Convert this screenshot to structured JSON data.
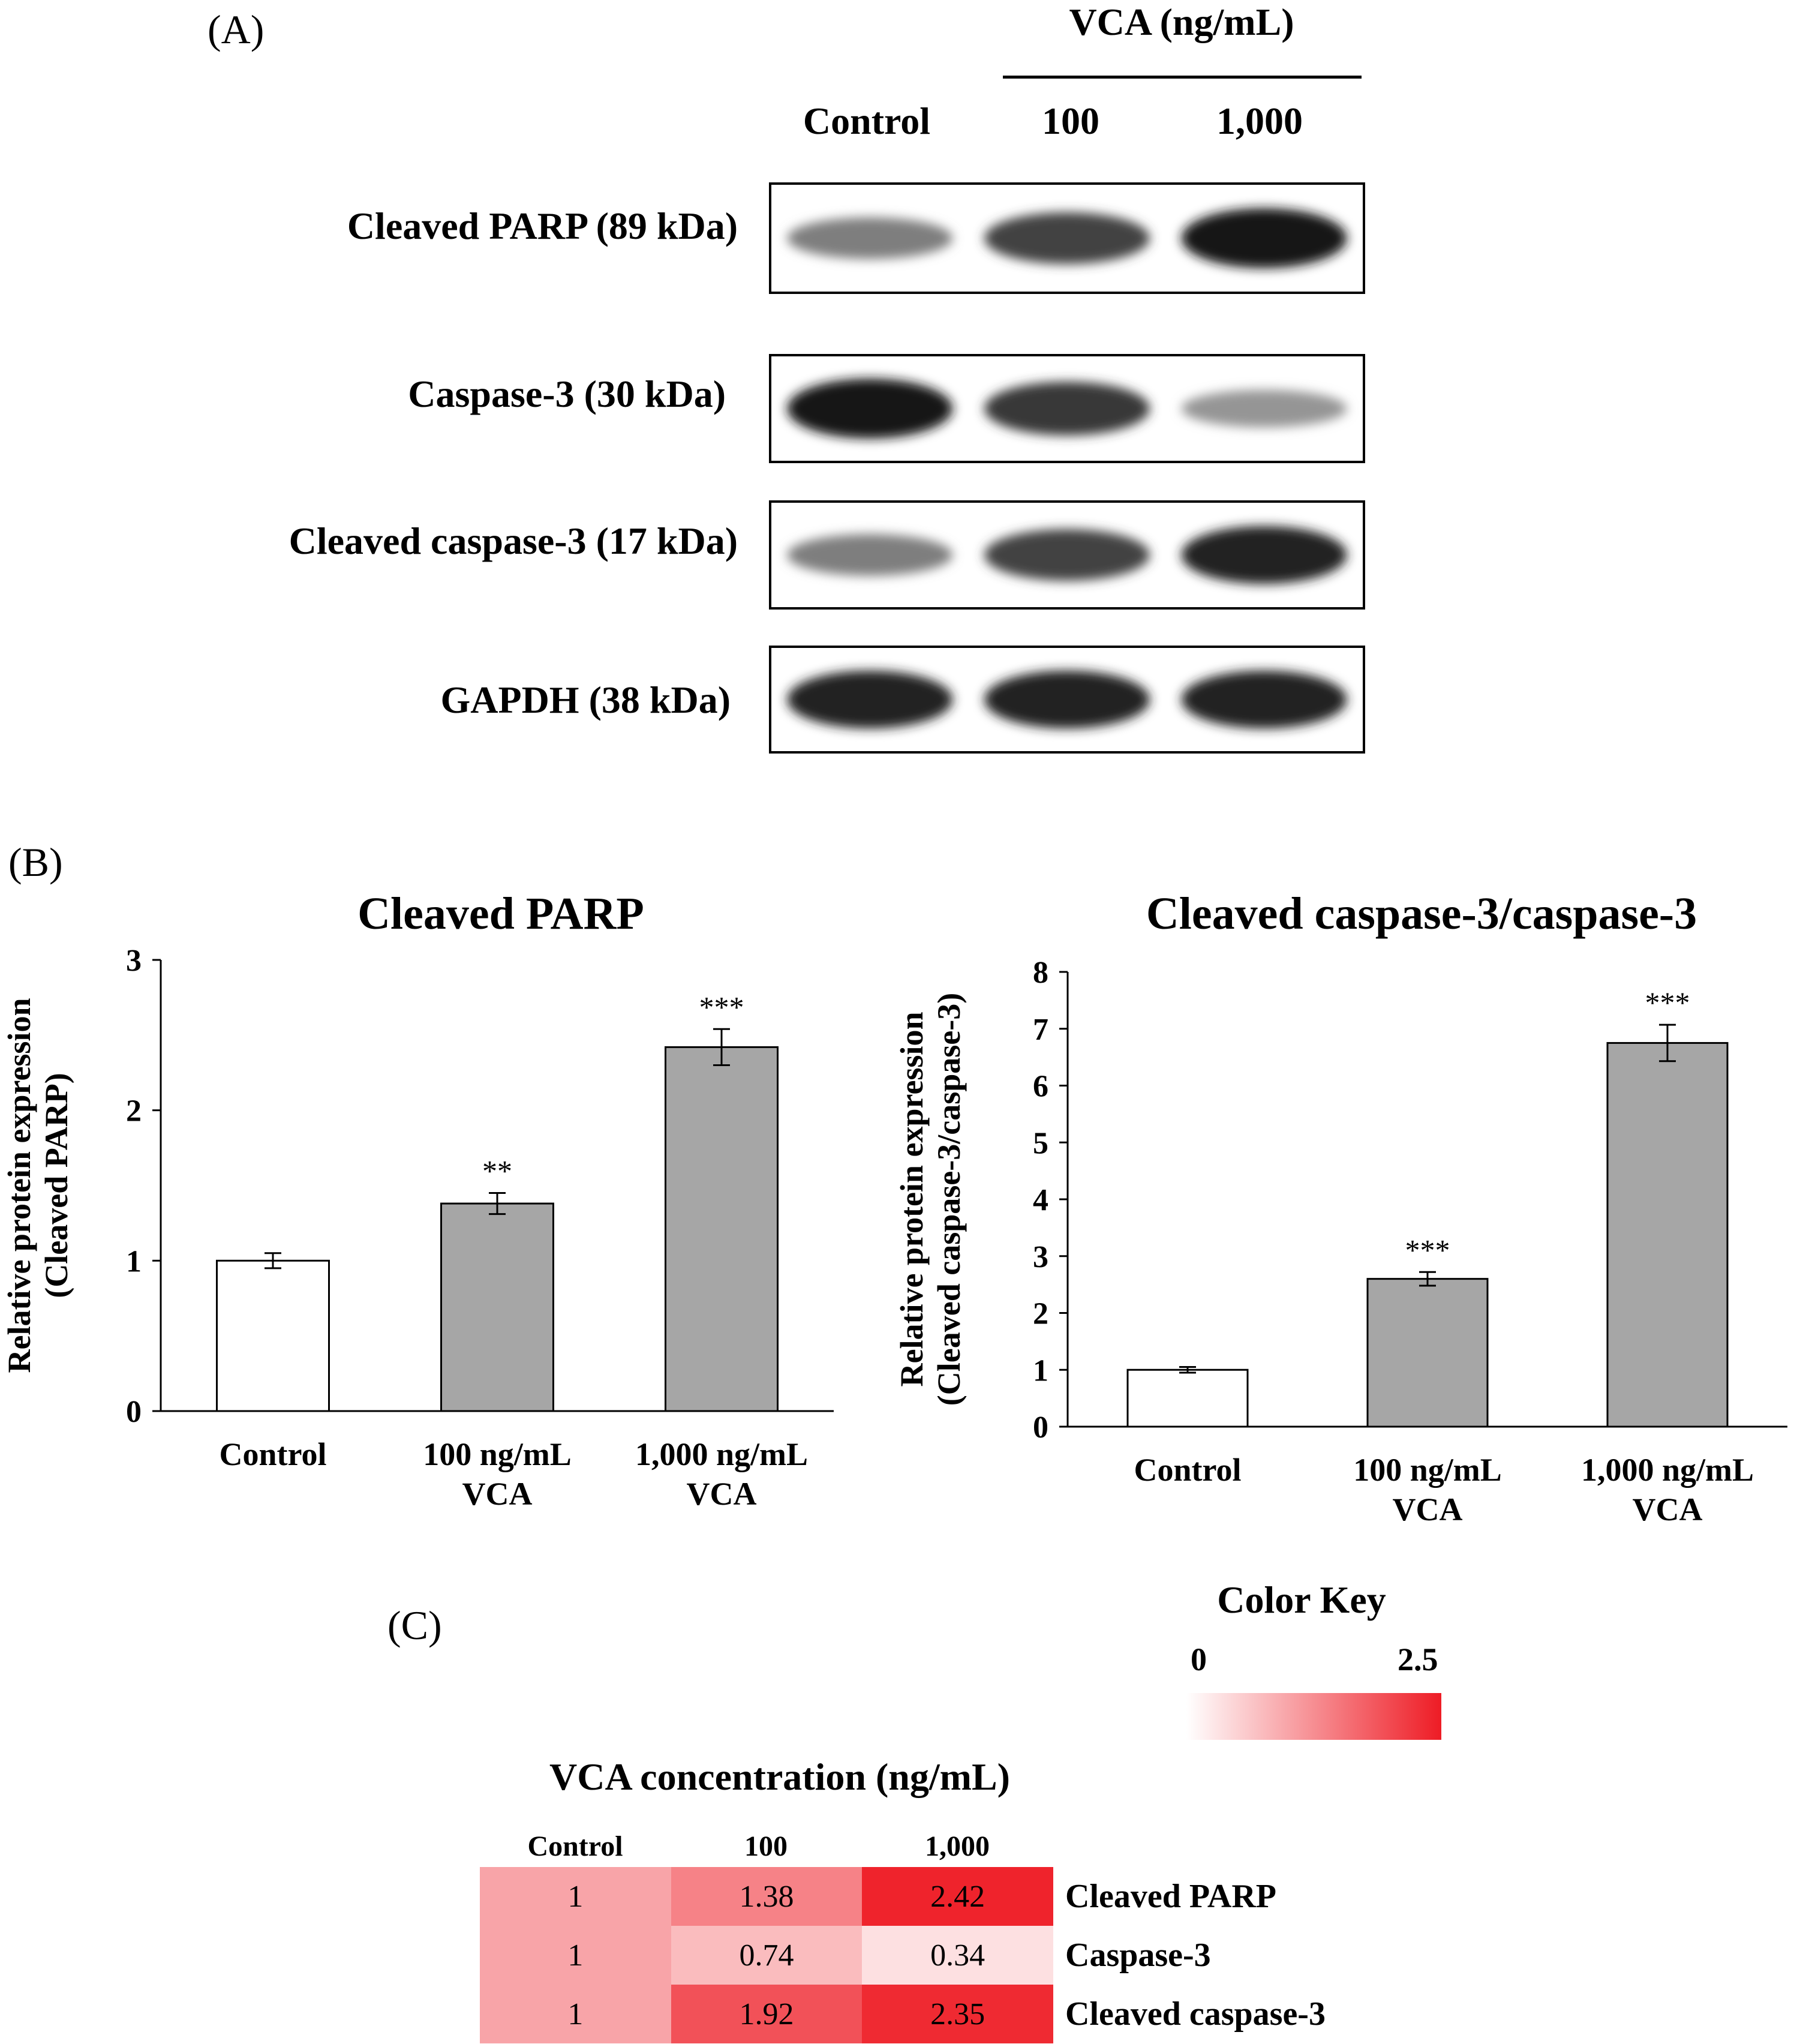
{
  "panels": {
    "a": "(A)",
    "b": "(B)",
    "c": "(C)"
  },
  "blot": {
    "group_header": "VCA (ng/mL)",
    "lanes": [
      "Control",
      "100",
      "1,000"
    ],
    "rows": [
      {
        "label": "Cleaved PARP (89 kDa)",
        "intensity": [
          0.55,
          0.8,
          1.0
        ]
      },
      {
        "label": "Caspase-3 (30 kDa)",
        "intensity": [
          1.0,
          0.85,
          0.45
        ]
      },
      {
        "label": "Cleaved caspase-3 (17 kDa)",
        "intensity": [
          0.55,
          0.8,
          0.95
        ]
      },
      {
        "label": "GAPDH (38 kDa)",
        "intensity": [
          0.95,
          0.95,
          0.95
        ]
      }
    ]
  },
  "chart_data": [
    {
      "type": "bar",
      "title": "Cleaved PARP",
      "ylabel_lines": [
        "Relative protein expression",
        "(Cleaved PARP)"
      ],
      "categories": [
        [
          "Control"
        ],
        [
          "100 ng/mL",
          "VCA"
        ],
        [
          "1,000 ng/mL",
          "VCA"
        ]
      ],
      "values": [
        1.0,
        1.38,
        2.42
      ],
      "errors": [
        0.05,
        0.07,
        0.12
      ],
      "significance": [
        "",
        "**",
        "***"
      ],
      "bar_colors": [
        "#ffffff",
        "#a6a6a6",
        "#a6a6a6"
      ],
      "ylim": [
        0,
        3
      ],
      "yticks": [
        "0",
        "1",
        "2",
        "3"
      ]
    },
    {
      "type": "bar",
      "title": "Cleaved caspase-3/caspase-3",
      "ylabel_lines": [
        "Relative protein expression",
        "(Cleaved caspase-3/caspase-3)"
      ],
      "categories": [
        [
          "Control"
        ],
        [
          "100 ng/mL",
          "VCA"
        ],
        [
          "1,000 ng/mL",
          "VCA"
        ]
      ],
      "values": [
        1.0,
        2.6,
        6.75
      ],
      "errors": [
        0.05,
        0.12,
        0.32
      ],
      "significance": [
        "",
        "***",
        "***"
      ],
      "bar_colors": [
        "#ffffff",
        "#a6a6a6",
        "#a6a6a6"
      ],
      "ylim": [
        0,
        8
      ],
      "yticks": [
        "0",
        "1",
        "2",
        "3",
        "4",
        "5",
        "6",
        "7",
        "8"
      ]
    },
    {
      "type": "heatmap",
      "title": "VCA concentration (ng/mL)",
      "columns": [
        "Control",
        "100",
        "1,000"
      ],
      "rows": [
        "Cleaved PARP",
        "Caspase-3",
        "Cleaved caspase-3"
      ],
      "values": [
        [
          1,
          1.38,
          2.42
        ],
        [
          1,
          0.74,
          0.34
        ],
        [
          1,
          1.92,
          2.35
        ]
      ],
      "cell_text": [
        [
          "1",
          "1.38",
          "2.42"
        ],
        [
          "1",
          "0.74",
          "0.34"
        ],
        [
          "1",
          "1.92",
          "2.35"
        ]
      ],
      "color_key": {
        "title": "Color Key",
        "min_label": "0",
        "max_label": "2.5",
        "min": 0,
        "max": 2.5,
        "low_color": "#ffffff",
        "high_color": "#ee1c25"
      }
    }
  ]
}
